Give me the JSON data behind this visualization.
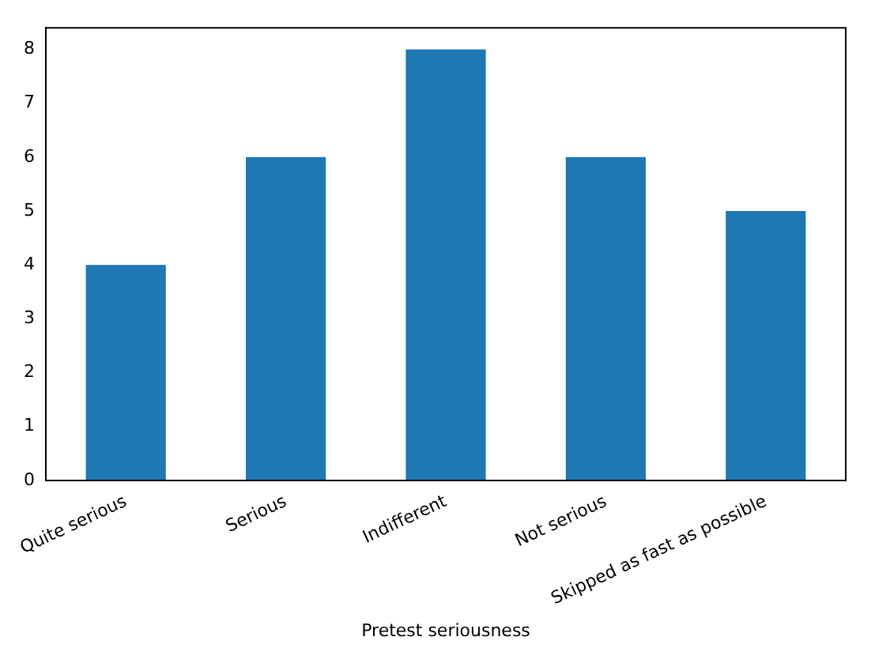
{
  "chart_data": {
    "type": "bar",
    "xlabel": "Pretest seriousness",
    "categories": [
      "Quite serious",
      "Serious",
      "Indifferent",
      "Not serious",
      "Skipped as fast as possible"
    ],
    "values": [
      4,
      6,
      8,
      6,
      5
    ],
    "color": "#1f77b4",
    "ylim": [
      0,
      8.4
    ],
    "yticks": [
      0,
      1,
      2,
      3,
      4,
      5,
      6,
      7,
      8
    ],
    "grid": false,
    "legend": false
  }
}
